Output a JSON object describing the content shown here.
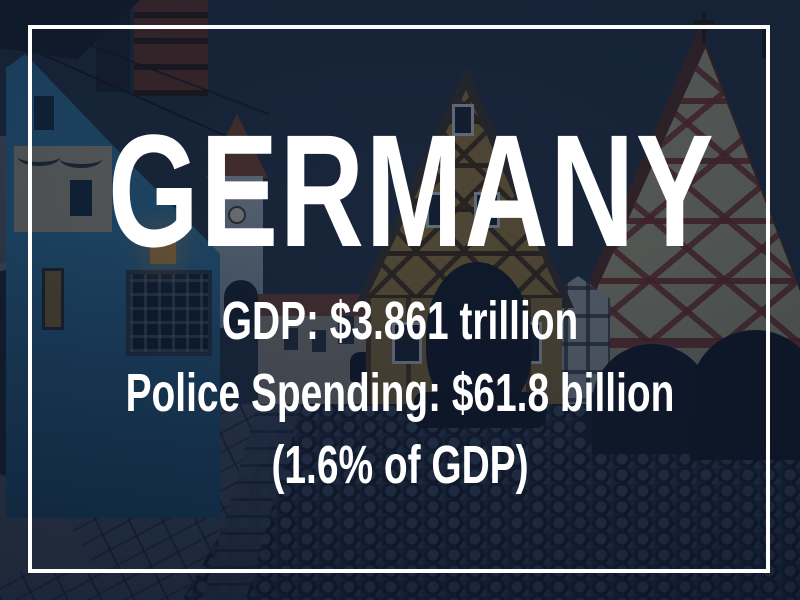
{
  "slide": {
    "title": "GERMANY",
    "stat_lines": {
      "gdp": "GDP: $3.861 trillion",
      "police_spending": "Police Spending: $61.8 billion",
      "gdp_percent": "(1.6% of GDP)"
    }
  },
  "style": {
    "text_color": "#ffffff",
    "frame_color": "#ffffff",
    "overlay_color": "#16243a",
    "sky_top": "#1e3046",
    "sky_bottom": "#4a6c82"
  },
  "background": {
    "photo_description": "Dusk street in a historic German old town: blue facade house on the left, white gate tower with clock and arch, ochre and cream half-timbered gable houses, cobblestone street, all under a dark navy overlay"
  }
}
